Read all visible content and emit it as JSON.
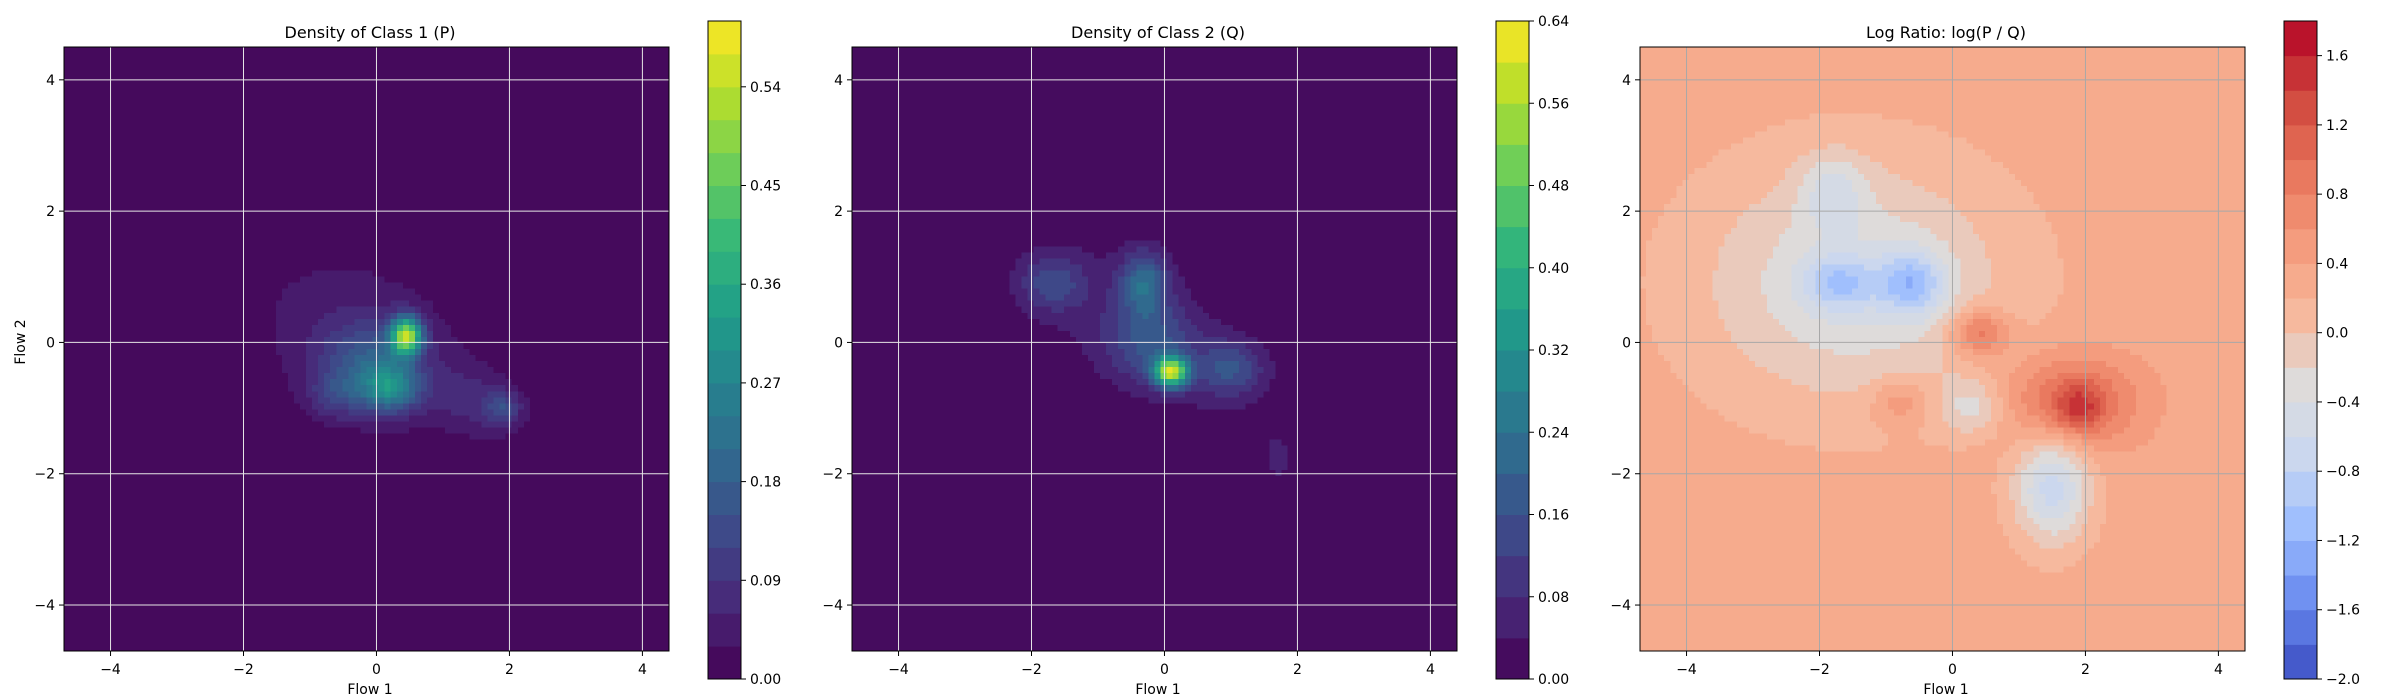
{
  "chart_data": [
    {
      "type": "contour",
      "title": "Density of Class 1 (P)",
      "xlabel": "Flow 1",
      "ylabel": "Flow 2",
      "xlim": [
        -4.7,
        4.4
      ],
      "ylim": [
        -4.7,
        4.5
      ],
      "xticks": [
        -4,
        -2,
        0,
        2,
        4
      ],
      "yticks": [
        -4,
        -2,
        0,
        2,
        4
      ],
      "grid": true,
      "colormap": "viridis",
      "colorbar": {
        "min": 0.0,
        "max": 0.6,
        "levels": 20,
        "ticks": [
          0.0,
          0.09,
          0.18,
          0.27,
          0.36,
          0.45,
          0.54
        ],
        "tick_labels": [
          "0.00",
          "0.09",
          "0.18",
          "0.27",
          "0.36",
          "0.45",
          "0.54"
        ]
      },
      "blobs": [
        {
          "x": -0.2,
          "y": 0.0,
          "sx": 1.2,
          "sy": 0.85,
          "rot": -30,
          "amp": 0.06
        },
        {
          "x": 0.45,
          "y": 0.1,
          "sx": 0.16,
          "sy": 0.2,
          "rot": 0,
          "amp": 0.48
        },
        {
          "x": 0.2,
          "y": -0.7,
          "sx": 0.3,
          "sy": 0.25,
          "rot": 0,
          "amp": 0.22
        },
        {
          "x": -0.1,
          "y": -0.3,
          "sx": 0.5,
          "sy": 0.4,
          "rot": 0,
          "amp": 0.12
        },
        {
          "x": 1.5,
          "y": -0.9,
          "sx": 0.5,
          "sy": 0.35,
          "rot": -20,
          "amp": 0.06
        },
        {
          "x": 1.9,
          "y": -1.0,
          "sx": 0.18,
          "sy": 0.18,
          "rot": 0,
          "amp": 0.1
        },
        {
          "x": -0.6,
          "y": -0.8,
          "sx": 0.3,
          "sy": 0.25,
          "rot": 0,
          "amp": 0.08
        }
      ]
    },
    {
      "type": "contour",
      "title": "Density of Class 2 (Q)",
      "xlabel": "Flow 1",
      "ylabel": "",
      "xlim": [
        -4.7,
        4.4
      ],
      "ylim": [
        -4.7,
        4.5
      ],
      "xticks": [
        -4,
        -2,
        0,
        2,
        4
      ],
      "yticks": [
        -4,
        -2,
        0,
        2,
        4
      ],
      "grid": true,
      "colormap": "viridis",
      "colorbar": {
        "min": 0.0,
        "max": 0.64,
        "levels": 16,
        "ticks": [
          0.0,
          0.08,
          0.16,
          0.24,
          0.32,
          0.4,
          0.48,
          0.56,
          0.64
        ],
        "tick_labels": [
          "0.00",
          "0.08",
          "0.16",
          "0.24",
          "0.32",
          "0.40",
          "0.48",
          "0.56",
          "0.64"
        ]
      },
      "blobs": [
        {
          "x": -0.4,
          "y": 0.2,
          "sx": 1.4,
          "sy": 0.7,
          "rot": -35,
          "amp": 0.06
        },
        {
          "x": 0.1,
          "y": -0.45,
          "sx": 0.18,
          "sy": 0.16,
          "rot": 0,
          "amp": 0.52
        },
        {
          "x": -0.3,
          "y": 0.9,
          "sx": 0.25,
          "sy": 0.35,
          "rot": 0,
          "amp": 0.2
        },
        {
          "x": -1.7,
          "y": 0.9,
          "sx": 0.35,
          "sy": 0.3,
          "rot": 0,
          "amp": 0.12
        },
        {
          "x": 1.0,
          "y": -0.4,
          "sx": 0.35,
          "sy": 0.3,
          "rot": 0,
          "amp": 0.14
        },
        {
          "x": -0.2,
          "y": 0.0,
          "sx": 0.45,
          "sy": 0.4,
          "rot": 0,
          "amp": 0.12
        },
        {
          "x": 1.7,
          "y": -1.8,
          "sx": 0.25,
          "sy": 0.45,
          "rot": 0,
          "amp": 0.04
        }
      ]
    },
    {
      "type": "contour",
      "title": "Log Ratio: log(P / Q)",
      "xlabel": "Flow 1",
      "ylabel": "",
      "xlim": [
        -4.7,
        4.4
      ],
      "ylim": [
        -4.7,
        4.5
      ],
      "xticks": [
        -4,
        -2,
        0,
        2,
        4
      ],
      "yticks": [
        -4,
        -2,
        0,
        2,
        4
      ],
      "grid": true,
      "colormap": "coolwarm",
      "background_value": 0.3,
      "colorbar": {
        "min": -2.0,
        "max": 1.8,
        "levels": 19,
        "ticks": [
          -2.0,
          -1.6,
          -1.2,
          -0.8,
          -0.4,
          0.0,
          0.4,
          0.8,
          1.2,
          1.6
        ],
        "tick_labels": [
          "−2.0",
          "−1.6",
          "−1.2",
          "−0.8",
          "−0.4",
          "0.0",
          "0.4",
          "0.8",
          "1.2",
          "1.6"
        ]
      },
      "blobs": [
        {
          "x": -1.5,
          "y": 0.9,
          "sx": 1.6,
          "sy": 1.3,
          "rot": 0,
          "amp": -0.7
        },
        {
          "x": -0.6,
          "y": 0.9,
          "sx": 0.35,
          "sy": 0.35,
          "rot": 0,
          "amp": -0.9
        },
        {
          "x": -1.7,
          "y": 0.9,
          "sx": 0.4,
          "sy": 0.3,
          "rot": 0,
          "amp": -0.7
        },
        {
          "x": -1.8,
          "y": 2.3,
          "sx": 0.35,
          "sy": 0.4,
          "rot": 0,
          "amp": -0.5
        },
        {
          "x": 1.8,
          "y": -0.9,
          "sx": 0.7,
          "sy": 0.5,
          "rot": 0,
          "amp": 0.8
        },
        {
          "x": 1.9,
          "y": -1.0,
          "sx": 0.25,
          "sy": 0.25,
          "rot": 0,
          "amp": 0.6
        },
        {
          "x": 0.4,
          "y": 0.15,
          "sx": 0.3,
          "sy": 0.25,
          "rot": 0,
          "amp": 0.8
        },
        {
          "x": 1.5,
          "y": -2.2,
          "sx": 0.4,
          "sy": 0.6,
          "rot": 0,
          "amp": -1.0
        },
        {
          "x": 0.3,
          "y": -1.0,
          "sx": 0.35,
          "sy": 0.3,
          "rot": 0,
          "amp": -0.5
        },
        {
          "x": -0.8,
          "y": -0.9,
          "sx": 0.3,
          "sy": 0.25,
          "rot": 0,
          "amp": 0.4
        }
      ]
    }
  ]
}
